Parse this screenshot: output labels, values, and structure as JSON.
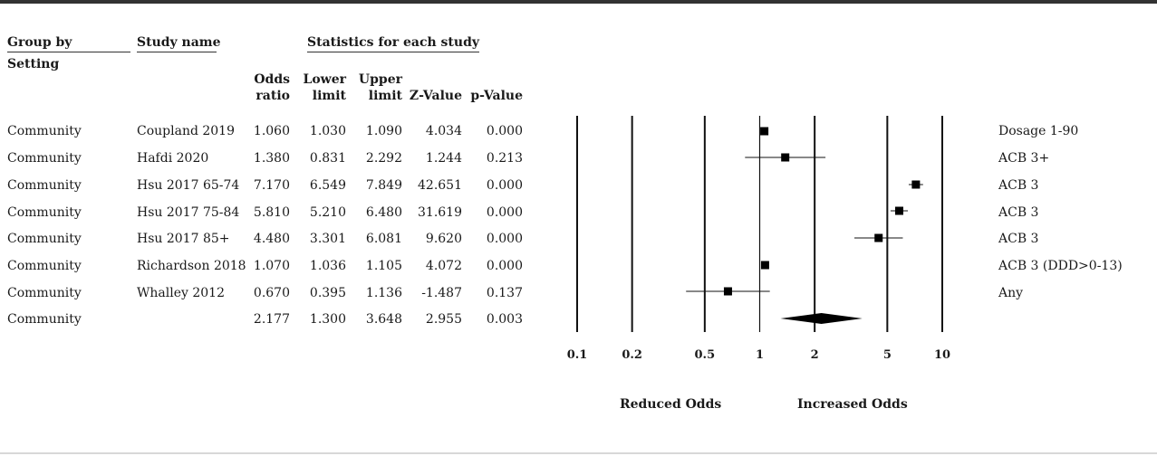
{
  "headers": {
    "group_by": "Group by",
    "setting": "Setting",
    "study_name": "Study name",
    "stats_title": "Statistics for each study",
    "odds_ratio": [
      "Odds",
      "ratio"
    ],
    "lower_limit": [
      "Lower",
      "limit"
    ],
    "upper_limit": [
      "Upper",
      "limit"
    ],
    "z_value": "Z-Value",
    "p_value": "p-Value"
  },
  "rows": [
    {
      "group": "Community",
      "study": "Coupland 2019",
      "odds": "1.060",
      "lower": "1.030",
      "upper": "1.090",
      "z": "4.034",
      "p": "0.000",
      "note": "Dosage 1-90"
    },
    {
      "group": "Community",
      "study": "Hafdi 2020",
      "odds": "1.380",
      "lower": "0.831",
      "upper": "2.292",
      "z": "1.244",
      "p": "0.213",
      "note": "ACB 3+"
    },
    {
      "group": "Community",
      "study": "Hsu 2017 65-74",
      "odds": "7.170",
      "lower": "6.549",
      "upper": "7.849",
      "z": "42.651",
      "p": "0.000",
      "note": "ACB 3"
    },
    {
      "group": "Community",
      "study": "Hsu 2017 75-84",
      "odds": "5.810",
      "lower": "5.210",
      "upper": "6.480",
      "z": "31.619",
      "p": "0.000",
      "note": "ACB 3"
    },
    {
      "group": "Community",
      "study": "Hsu 2017 85+",
      "odds": "4.480",
      "lower": "3.301",
      "upper": "6.081",
      "z": "9.620",
      "p": "0.000",
      "note": "ACB 3"
    },
    {
      "group": "Community",
      "study": "Richardson 2018",
      "odds": "1.070",
      "lower": "1.036",
      "upper": "1.105",
      "z": "4.072",
      "p": "0.000",
      "note": "ACB 3 (DDD>0-13)"
    },
    {
      "group": "Community",
      "study": "Whalley 2012",
      "odds": "0.670",
      "lower": "0.395",
      "upper": "1.136",
      "z": "-1.487",
      "p": "0.137",
      "note": "Any"
    },
    {
      "group": "Community",
      "study": "",
      "odds": "2.177",
      "lower": "1.300",
      "upper": "3.648",
      "z": "2.955",
      "p": "0.003",
      "note": ""
    }
  ],
  "axis": {
    "ticks": [
      "0.1",
      "0.2",
      "0.5",
      "1",
      "2",
      "5",
      "10"
    ],
    "left_label": "Reduced Odds",
    "right_label": "Increased Odds"
  },
  "chart_data": {
    "type": "forest",
    "x_scale": "log",
    "xlim": [
      0.1,
      10
    ],
    "x_ticks": [
      0.1,
      0.2,
      0.5,
      1,
      2,
      5,
      10
    ],
    "xlabel_left": "Reduced Odds",
    "xlabel_right": "Increased Odds",
    "studies": [
      {
        "name": "Coupland 2019",
        "or": 1.06,
        "lower": 1.03,
        "upper": 1.09
      },
      {
        "name": "Hafdi 2020",
        "or": 1.38,
        "lower": 0.831,
        "upper": 2.292
      },
      {
        "name": "Hsu 2017 65-74",
        "or": 7.17,
        "lower": 6.549,
        "upper": 7.849
      },
      {
        "name": "Hsu 2017 75-84",
        "or": 5.81,
        "lower": 5.21,
        "upper": 6.48
      },
      {
        "name": "Hsu 2017 85+",
        "or": 4.48,
        "lower": 3.301,
        "upper": 6.081
      },
      {
        "name": "Richardson 2018",
        "or": 1.07,
        "lower": 1.036,
        "upper": 1.105
      },
      {
        "name": "Whalley 2012",
        "or": 0.67,
        "lower": 0.395,
        "upper": 1.136
      }
    ],
    "pooled": {
      "or": 2.177,
      "lower": 1.3,
      "upper": 3.648
    }
  }
}
